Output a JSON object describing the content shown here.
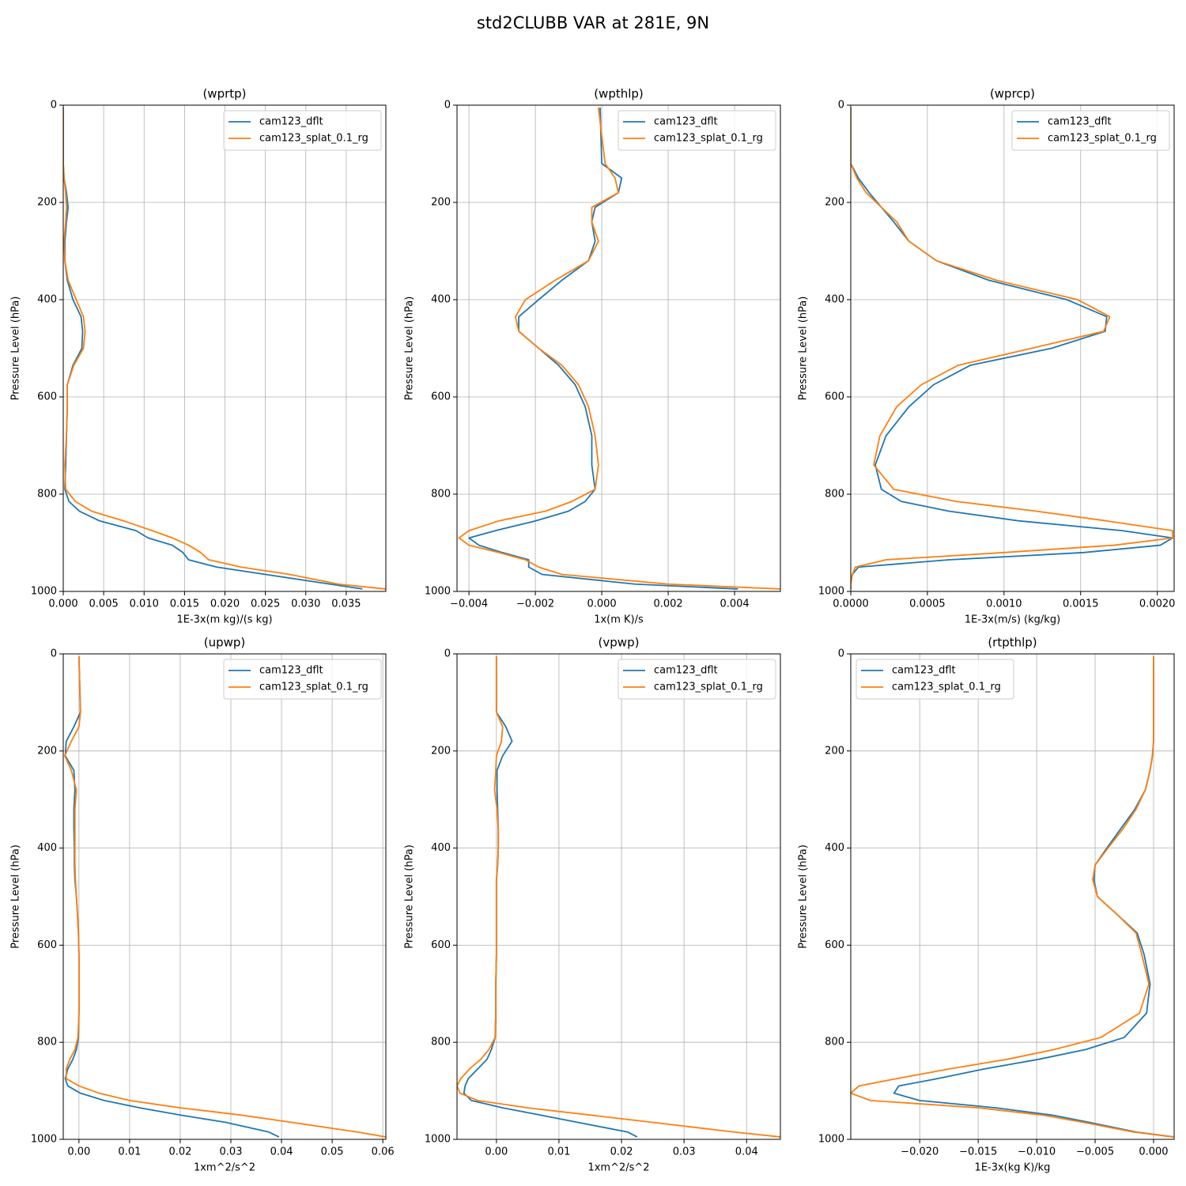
{
  "title": "std2CLUBB VAR at 281E, 9N",
  "chart_data": [
    {
      "type": "line",
      "title": "(wprtp)",
      "x_label": "1E-3x(m kg)/(s kg)",
      "y_label": "Pressure Level (hPa)",
      "grid": true,
      "legend_loc": "upper right",
      "y": [
        5,
        120,
        150,
        180,
        210,
        240,
        280,
        320,
        360,
        400,
        435,
        465,
        500,
        535,
        575,
        620,
        680,
        740,
        790,
        815,
        835,
        855,
        875,
        890,
        905,
        920,
        935,
        950,
        965,
        985,
        995
      ],
      "xlim": [
        0,
        0.0399
      ],
      "ylim": [
        1000,
        0
      ],
      "xticks": [
        {
          "value": 0,
          "label": "0.000"
        },
        {
          "value": 0.005,
          "label": "0.005"
        },
        {
          "value": 0.01,
          "label": "0.010"
        },
        {
          "value": 0.015,
          "label": "0.015"
        },
        {
          "value": 0.02,
          "label": "0.020"
        },
        {
          "value": 0.025,
          "label": "0.025"
        },
        {
          "value": 0.03,
          "label": "0.030"
        },
        {
          "value": 0.035,
          "label": "0.035"
        }
      ],
      "yticks": [
        0,
        200,
        400,
        600,
        800,
        1000
      ],
      "series": [
        {
          "name": "cam123_dflt",
          "color": "#1f77b4",
          "values": [
            0,
            0,
            0.0001,
            0.0004,
            0.0006,
            0.0004,
            0.0002,
            0.0002,
            0.0005,
            0.0012,
            0.0022,
            0.0024,
            0.0023,
            0.0012,
            0.0005,
            0.0005,
            0.0004,
            0.0003,
            0.0002,
            0.0007,
            0.002,
            0.0045,
            0.009,
            0.0105,
            0.0135,
            0.0148,
            0.0155,
            0.019,
            0.025,
            0.033,
            0.037
          ]
        },
        {
          "name": "cam123_splat_0.1_rg",
          "color": "#ff7f0e",
          "values": [
            0,
            0,
            0.0001,
            0.0003,
            0.0004,
            0.0003,
            0.0001,
            0.0002,
            0.0006,
            0.0016,
            0.0025,
            0.0027,
            0.0025,
            0.0013,
            0.0005,
            0.0005,
            0.0004,
            0.0002,
            0.0003,
            0.0015,
            0.0035,
            0.0075,
            0.011,
            0.0135,
            0.0155,
            0.017,
            0.018,
            0.022,
            0.028,
            0.034,
            0.0399
          ]
        }
      ]
    },
    {
      "type": "line",
      "title": "(wpthlp)",
      "x_label": "1x(m K)/s",
      "y_label": "Pressure Level (hPa)",
      "grid": true,
      "legend_loc": "upper right",
      "y": [
        5,
        120,
        150,
        180,
        210,
        240,
        280,
        320,
        360,
        400,
        435,
        465,
        500,
        535,
        575,
        620,
        680,
        740,
        790,
        815,
        835,
        855,
        875,
        890,
        905,
        920,
        935,
        950,
        965,
        985,
        995
      ],
      "xlim": [
        -0.00436,
        0.00538
      ],
      "ylim": [
        1000,
        0
      ],
      "xticks": [
        {
          "value": -0.004,
          "label": "−0.004"
        },
        {
          "value": -0.002,
          "label": "−0.002"
        },
        {
          "value": 0,
          "label": "0.000"
        },
        {
          "value": 0.002,
          "label": "0.002"
        },
        {
          "value": 0.004,
          "label": "0.004"
        }
      ],
      "yticks": [
        0,
        200,
        400,
        600,
        800,
        1000
      ],
      "series": [
        {
          "name": "cam123_dflt",
          "color": "#1f77b4",
          "values": [
            -5e-05,
            0,
            0.0006,
            0.0005,
            -0.0002,
            -0.0003,
            -0.0002,
            -0.0004,
            -0.0012,
            -0.0019,
            -0.0025,
            -0.0025,
            -0.0019,
            -0.0013,
            -0.0008,
            -0.0005,
            -0.0003,
            -0.0003,
            -0.0002,
            -0.0005,
            -0.001,
            -0.002,
            -0.0032,
            -0.004,
            -0.0037,
            -0.003,
            -0.0022,
            -0.0022,
            -0.0018,
            0.001,
            0.0041
          ]
        },
        {
          "name": "cam123_splat_0.1_rg",
          "color": "#ff7f0e",
          "values": [
            -0.0001,
            0.0001,
            0.0004,
            0.0005,
            -0.0003,
            -0.0003,
            -0.0001,
            -0.0004,
            -0.0014,
            -0.0023,
            -0.0026,
            -0.0025,
            -0.0019,
            -0.0012,
            -0.0007,
            -0.0004,
            -0.0002,
            -0.0001,
            -0.0002,
            -0.0009,
            -0.0017,
            -0.0031,
            -0.004,
            -0.0043,
            -0.004,
            -0.0031,
            -0.0023,
            -0.0019,
            -0.0012,
            0.002,
            0.0054
          ]
        }
      ]
    },
    {
      "type": "line",
      "title": "(wprcp)",
      "x_label": "1E-3x(m/s) (kg/kg)",
      "y_label": "Pressure Level (hPa)",
      "grid": true,
      "legend_loc": "upper right",
      "y": [
        5,
        120,
        150,
        180,
        210,
        240,
        280,
        320,
        360,
        400,
        435,
        465,
        500,
        535,
        575,
        620,
        680,
        740,
        790,
        815,
        835,
        855,
        875,
        890,
        905,
        920,
        935,
        950,
        965,
        985,
        995
      ],
      "xlim": [
        0,
        0.00211
      ],
      "ylim": [
        1000,
        0
      ],
      "xticks": [
        {
          "value": 0,
          "label": "0.0000"
        },
        {
          "value": 0.0005,
          "label": "0.0005"
        },
        {
          "value": 0.001,
          "label": "0.0010"
        },
        {
          "value": 0.0015,
          "label": "0.0015"
        },
        {
          "value": 0.002,
          "label": "0.0020"
        }
      ],
      "yticks": [
        0,
        200,
        400,
        600,
        800,
        1000
      ],
      "series": [
        {
          "name": "cam123_dflt",
          "color": "#1f77b4",
          "values": [
            0,
            0,
            5e-05,
            0.00012,
            0.0002,
            0.00028,
            0.00038,
            0.00056,
            0.0009,
            0.00141,
            0.00167,
            0.00166,
            0.00131,
            0.00078,
            0.00054,
            0.00038,
            0.00023,
            0.00016,
            0.0002,
            0.00033,
            0.00064,
            0.0011,
            0.00177,
            0.0021,
            0.00202,
            0.00152,
            0.00064,
            5e-05,
            1e-05,
            0,
            0
          ]
        },
        {
          "name": "cam123_splat_0.1_rg",
          "color": "#ff7f0e",
          "values": [
            0,
            0,
            4e-05,
            0.0001,
            0.0002,
            0.0003,
            0.00038,
            0.00056,
            0.00095,
            0.00148,
            0.00169,
            0.00165,
            0.00118,
            0.0007,
            0.00046,
            0.0003,
            0.00019,
            0.00015,
            0.00028,
            0.00069,
            0.00121,
            0.00167,
            0.0021,
            0.0021,
            0.00172,
            0.001,
            0.00023,
            3e-05,
            1e-05,
            0,
            0
          ]
        }
      ]
    },
    {
      "type": "line",
      "title": "(upwp)",
      "x_label": "1xm^2/s^2",
      "y_label": "Pressure Level (hPa)",
      "grid": true,
      "legend_loc": "upper right",
      "y": [
        5,
        120,
        150,
        180,
        210,
        240,
        280,
        320,
        360,
        400,
        435,
        465,
        500,
        535,
        575,
        620,
        680,
        740,
        790,
        815,
        835,
        855,
        875,
        890,
        905,
        920,
        935,
        950,
        965,
        985,
        995
      ],
      "xlim": [
        -0.0031,
        0.0606
      ],
      "ylim": [
        1000,
        0
      ],
      "xticks": [
        {
          "value": 0,
          "label": "0.00"
        },
        {
          "value": 0.01,
          "label": "0.01"
        },
        {
          "value": 0.02,
          "label": "0.02"
        },
        {
          "value": 0.03,
          "label": "0.03"
        },
        {
          "value": 0.04,
          "label": "0.04"
        },
        {
          "value": 0.05,
          "label": "0.05"
        },
        {
          "value": 0.06,
          "label": "0.06"
        }
      ],
      "yticks": [
        0,
        200,
        400,
        600,
        800,
        1000
      ],
      "series": [
        {
          "name": "cam123_dflt",
          "color": "#1f77b4",
          "values": [
            0,
            0.0003,
            -0.001,
            -0.0025,
            -0.0027,
            -0.001,
            -0.0008,
            -0.001,
            -0.001,
            -0.0009,
            -0.0009,
            -0.0008,
            -0.0005,
            -0.0003,
            -0.0001,
            0,
            0,
            0,
            -0.0001,
            -0.0005,
            -0.0012,
            -0.0022,
            -0.0027,
            -0.0022,
            0.0003,
            0.005,
            0.012,
            0.02,
            0.029,
            0.0375,
            0.0395
          ]
        },
        {
          "name": "cam123_splat_0.1_rg",
          "color": "#ff7f0e",
          "values": [
            0,
            0.0003,
            0,
            -0.0015,
            -0.0028,
            -0.0015,
            -0.0005,
            -0.0008,
            -0.0008,
            -0.0008,
            -0.0008,
            -0.0007,
            -0.0005,
            -0.0003,
            -0.0001,
            0,
            0,
            0,
            -0.0002,
            -0.0008,
            -0.0018,
            -0.0025,
            -0.0025,
            0,
            0.004,
            0.01,
            0.02,
            0.032,
            0.042,
            0.055,
            0.0606
          ]
        }
      ]
    },
    {
      "type": "line",
      "title": "(vpwp)",
      "x_label": "1xm^2/s^2",
      "y_label": "Pressure Level (hPa)",
      "grid": true,
      "legend_loc": "upper right",
      "y": [
        5,
        120,
        150,
        180,
        210,
        240,
        280,
        320,
        360,
        400,
        435,
        465,
        500,
        535,
        575,
        620,
        680,
        740,
        790,
        815,
        835,
        855,
        875,
        890,
        905,
        920,
        935,
        950,
        965,
        985,
        995
      ],
      "xlim": [
        -0.0063,
        0.0454
      ],
      "ylim": [
        1000,
        0
      ],
      "xticks": [
        {
          "value": 0,
          "label": "0.00"
        },
        {
          "value": 0.01,
          "label": "0.01"
        },
        {
          "value": 0.02,
          "label": "0.02"
        },
        {
          "value": 0.03,
          "label": "0.03"
        },
        {
          "value": 0.04,
          "label": "0.04"
        }
      ],
      "yticks": [
        0,
        200,
        400,
        600,
        800,
        1000
      ],
      "series": [
        {
          "name": "cam123_dflt",
          "color": "#1f77b4",
          "values": [
            0,
            0,
            0.0015,
            0.0025,
            0.001,
            0.0001,
            0.0001,
            0.0002,
            0.0003,
            0.0003,
            0.0002,
            0,
            0,
            0,
            0,
            0,
            -0.0001,
            -0.0001,
            -0.0002,
            -0.0008,
            -0.0015,
            -0.003,
            -0.0045,
            -0.005,
            -0.0052,
            -0.004,
            0.001,
            0.007,
            0.013,
            0.021,
            0.0225
          ]
        },
        {
          "name": "cam123_splat_0.1_rg",
          "color": "#ff7f0e",
          "values": [
            0,
            0,
            0.001,
            0.0008,
            0,
            -0.0001,
            -0.0003,
            0.0001,
            0.0003,
            0.0003,
            0.0002,
            0,
            0,
            0,
            0,
            0,
            -0.0001,
            -0.0001,
            -0.0002,
            -0.0012,
            -0.0025,
            -0.0043,
            -0.0057,
            -0.0063,
            -0.0058,
            -0.003,
            0.005,
            0.015,
            0.025,
            0.038,
            0.0454
          ]
        }
      ]
    },
    {
      "type": "line",
      "title": "(rtpthlp)",
      "x_label": "1E-3x(kg K)/kg",
      "y_label": "Pressure Level (hPa)",
      "grid": true,
      "legend_loc": "upper left",
      "y": [
        5,
        120,
        150,
        180,
        210,
        240,
        280,
        320,
        360,
        400,
        435,
        465,
        500,
        535,
        575,
        620,
        680,
        740,
        790,
        815,
        835,
        855,
        875,
        890,
        905,
        920,
        935,
        950,
        965,
        985,
        995
      ],
      "xlim": [
        -0.0259,
        0.00176
      ],
      "ylim": [
        1000,
        0
      ],
      "xticks": [
        {
          "value": -0.02,
          "label": "−0.020"
        },
        {
          "value": -0.015,
          "label": "−0.015"
        },
        {
          "value": -0.01,
          "label": "−0.010"
        },
        {
          "value": -0.005,
          "label": "−0.005"
        },
        {
          "value": 0,
          "label": "0.000"
        }
      ],
      "yticks": [
        0,
        200,
        400,
        600,
        800,
        1000
      ],
      "series": [
        {
          "name": "cam123_dflt",
          "color": "#1f77b4",
          "values": [
            0,
            0,
            0,
            0,
            -0.0001,
            -0.0003,
            -0.0007,
            -0.0016,
            -0.0028,
            -0.004,
            -0.005,
            -0.0051,
            -0.0048,
            -0.0032,
            -0.0014,
            -0.0008,
            -0.0003,
            -0.0006,
            -0.0025,
            -0.0058,
            -0.0098,
            -0.0145,
            -0.0185,
            -0.0218,
            -0.0222,
            -0.02,
            -0.0135,
            -0.0087,
            -0.0055,
            -0.0015,
            0.0017
          ]
        },
        {
          "name": "cam123_splat_0.1_rg",
          "color": "#ff7f0e",
          "values": [
            0,
            0,
            0,
            0,
            -0.0001,
            -0.0003,
            -0.0007,
            -0.0015,
            -0.0026,
            -0.0039,
            -0.005,
            -0.0052,
            -0.0048,
            -0.0032,
            -0.0015,
            -0.001,
            -0.0004,
            -0.0012,
            -0.0045,
            -0.0085,
            -0.0125,
            -0.0175,
            -0.022,
            -0.0252,
            -0.0259,
            -0.0242,
            -0.015,
            -0.0095,
            -0.006,
            -0.0017,
            0.0017
          ]
        }
      ]
    }
  ]
}
